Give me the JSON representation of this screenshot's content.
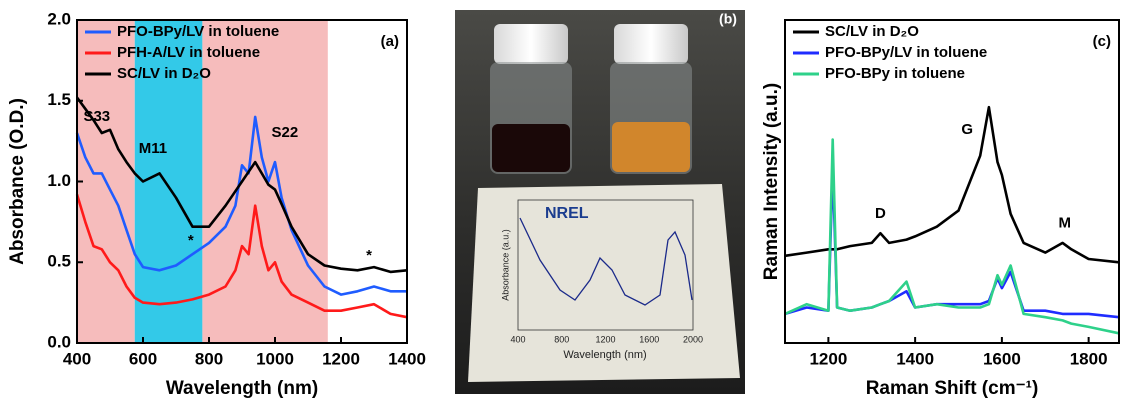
{
  "chart_data": [
    {
      "type": "line",
      "panel_label": "(a)",
      "xlabel": "Wavelength (nm)",
      "ylabel": "Absorbance (O.D.)",
      "xlim": [
        400,
        1400
      ],
      "ylim": [
        0,
        2
      ],
      "xticks": [
        400,
        600,
        800,
        1000,
        1200,
        1400
      ],
      "yticks": [
        {
          "value": 0,
          "label": "0.0"
        },
        0.5,
        {
          "value": 1,
          "label": "1.0"
        },
        1.5,
        {
          "value": 2,
          "label": "2.0"
        }
      ],
      "legend": "top-left",
      "spans": [
        {
          "x": [
            400,
            575
          ],
          "color": "#f6bcbc"
        },
        {
          "x": [
            575,
            780
          ],
          "color": "#33c9e8"
        },
        {
          "x": [
            780,
            1160
          ],
          "color": "#f6bcbc"
        }
      ],
      "x": [
        400,
        425,
        450,
        475,
        500,
        525,
        550,
        575,
        600,
        650,
        700,
        750,
        800,
        850,
        880,
        900,
        920,
        940,
        960,
        980,
        1000,
        1020,
        1050,
        1100,
        1150,
        1200,
        1250,
        1300,
        1350,
        1400
      ],
      "series": [
        {
          "name": "PFO-BPy/LV in toluene",
          "color": "#1f5cff",
          "values": [
            1.3,
            1.15,
            1.05,
            1.05,
            0.95,
            0.85,
            0.7,
            0.55,
            0.47,
            0.45,
            0.48,
            0.55,
            0.62,
            0.72,
            0.85,
            1.1,
            1.05,
            1.4,
            1.15,
            1.0,
            1.12,
            0.9,
            0.7,
            0.48,
            0.35,
            0.3,
            0.32,
            0.35,
            0.32,
            0.32
          ]
        },
        {
          "name": "PFH-A/LV in toluene",
          "color": "#ff1a1a",
          "values": [
            0.92,
            0.75,
            0.6,
            0.58,
            0.5,
            0.45,
            0.35,
            0.28,
            0.25,
            0.24,
            0.25,
            0.27,
            0.3,
            0.35,
            0.45,
            0.6,
            0.55,
            0.85,
            0.6,
            0.45,
            0.5,
            0.38,
            0.3,
            0.25,
            0.2,
            0.2,
            0.22,
            0.24,
            0.18,
            0.16
          ]
        },
        {
          "name": "SC/LV in D₂O",
          "color": "#000000",
          "values": [
            1.52,
            1.45,
            1.38,
            1.3,
            1.32,
            1.2,
            1.12,
            1.05,
            1.0,
            1.05,
            0.9,
            0.72,
            0.72,
            0.85,
            0.94,
            1.0,
            1.06,
            1.12,
            1.05,
            0.98,
            0.95,
            0.86,
            0.72,
            0.55,
            0.48,
            0.46,
            0.45,
            0.47,
            0.44,
            0.45
          ]
        }
      ],
      "annotations": [
        {
          "text": "S33",
          "x": 460,
          "y": 1.4
        },
        {
          "text": "M11",
          "x": 630,
          "y": 1.2
        },
        {
          "text": "S22",
          "x": 1030,
          "y": 1.3
        },
        {
          "text": "*",
          "x": 745,
          "y": 0.63
        },
        {
          "text": "*",
          "x": 1285,
          "y": 0.54
        }
      ]
    },
    {
      "type": "line",
      "panel_label": "(c)",
      "xlabel": "Raman Shift (cm⁻¹)",
      "ylabel": "Raman Intensity (a.u.)",
      "xlim": [
        1100,
        1870
      ],
      "ylim": [
        0,
        1
      ],
      "xticks": [
        1200,
        1400,
        1600,
        1800
      ],
      "legend": "top-left",
      "x": [
        1100,
        1150,
        1200,
        1210,
        1220,
        1250,
        1300,
        1320,
        1340,
        1380,
        1400,
        1450,
        1500,
        1550,
        1570,
        1590,
        1600,
        1620,
        1650,
        1700,
        1740,
        1760,
        1800,
        1870
      ],
      "series": [
        {
          "name": "SC/LV in D₂O",
          "color": "#000000",
          "values": [
            0.27,
            0.28,
            0.29,
            0.29,
            0.29,
            0.3,
            0.31,
            0.34,
            0.31,
            0.32,
            0.33,
            0.36,
            0.41,
            0.58,
            0.73,
            0.56,
            0.52,
            0.4,
            0.31,
            0.28,
            0.31,
            0.29,
            0.26,
            0.25
          ]
        },
        {
          "name": "PFO-BPy/LV in toluene",
          "color": "#1f2cff",
          "values": [
            0.09,
            0.11,
            0.1,
            0.55,
            0.11,
            0.1,
            0.11,
            0.12,
            0.13,
            0.16,
            0.11,
            0.12,
            0.12,
            0.12,
            0.13,
            0.2,
            0.17,
            0.22,
            0.1,
            0.1,
            0.09,
            0.09,
            0.09,
            0.08
          ]
        },
        {
          "name": "PFO-BPy in toluene",
          "color": "#2ed18a",
          "values": [
            0.09,
            0.12,
            0.1,
            0.63,
            0.11,
            0.1,
            0.11,
            0.12,
            0.13,
            0.19,
            0.11,
            0.12,
            0.11,
            0.11,
            0.12,
            0.21,
            0.18,
            0.24,
            0.09,
            0.08,
            0.07,
            0.06,
            0.05,
            0.03
          ]
        }
      ],
      "annotations": [
        {
          "text": "D",
          "x": 1320,
          "y": 0.4
        },
        {
          "text": "G",
          "x": 1520,
          "y": 0.66
        },
        {
          "text": "M",
          "x": 1745,
          "y": 0.37
        }
      ]
    }
  ],
  "photo": {
    "panel_label": "(b)",
    "logo": "NREL",
    "card_ylabel": "Absorbance (a.u.)",
    "card_xlabel": "Wavelength (nm)",
    "card_xticks": [
      "400",
      "800",
      "1200",
      "1600",
      "2000"
    ]
  }
}
